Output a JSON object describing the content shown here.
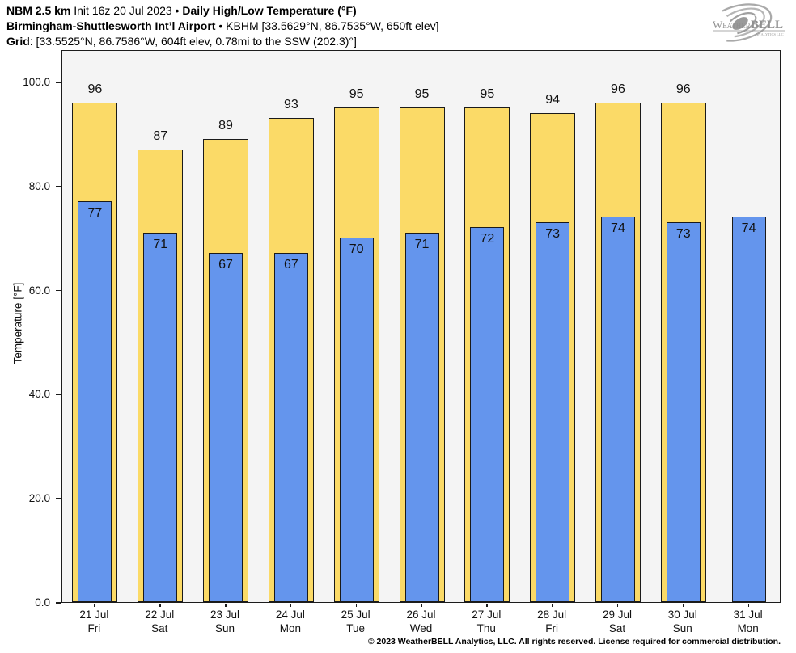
{
  "header": {
    "line1_bold1": "NBM 2.5 km",
    "line1_regular": " Init 16z 20 Jul 2023 • ",
    "line1_bold2": "Daily High/Low Temperature (°F)",
    "line2_bold": "Birmingham-Shuttlesworth Int’l Airport",
    "line2_regular": " • KBHM [33.5629°N, 86.7535°W, 650ft elev]",
    "line3_bold": "Grid",
    "line3_regular": ": [33.5525°N, 86.7586°W, 604ft elev, 0.78mi to the SSW (202.3)°]"
  },
  "logo": {
    "name": "WeatherBELL logo",
    "weather": "Weather",
    "bell": "BELL",
    "sub": "Analytics LLC",
    "color": "#9a9a9a"
  },
  "chart_data": {
    "type": "bar",
    "title": "NBM 2.5 km Init 16z 20 Jul 2023 • Daily High/Low Temperature (°F)",
    "subtitle": "Birmingham-Shuttlesworth Int’l Airport • KBHM [33.5629°N, 86.7535°W, 650ft elev]",
    "grid_info": "Grid: [33.5525°N, 86.7586°W, 604ft elev, 0.78mi to the SSW (202.3)°]",
    "xlabel": "",
    "ylabel": "Temperature [°F]",
    "ylim": [
      0,
      106.2
    ],
    "yticks": [
      0,
      20,
      40,
      60,
      80,
      100
    ],
    "grid_lines": false,
    "legend": "none",
    "plot_bg": "#f4f4f4",
    "bar_border": "#1a1a1a",
    "categories": [
      {
        "date": "21 Jul",
        "day": "Fri"
      },
      {
        "date": "22 Jul",
        "day": "Sat"
      },
      {
        "date": "23 Jul",
        "day": "Sun"
      },
      {
        "date": "24 Jul",
        "day": "Mon"
      },
      {
        "date": "25 Jul",
        "day": "Tue"
      },
      {
        "date": "26 Jul",
        "day": "Wed"
      },
      {
        "date": "27 Jul",
        "day": "Thu"
      },
      {
        "date": "28 Jul",
        "day": "Fri"
      },
      {
        "date": "29 Jul",
        "day": "Sat"
      },
      {
        "date": "30 Jul",
        "day": "Sun"
      },
      {
        "date": "31 Jul",
        "day": "Mon"
      }
    ],
    "series": [
      {
        "name": "High",
        "color": "#fbda67",
        "values": [
          96,
          87,
          89,
          93,
          95,
          95,
          95,
          94,
          96,
          96,
          null
        ]
      },
      {
        "name": "Low",
        "color": "#6495ed",
        "values": [
          77,
          71,
          67,
          67,
          70,
          71,
          72,
          73,
          74,
          73,
          74
        ]
      }
    ]
  },
  "footer": {
    "copyright": "© 2023 WeatherBELL Analytics, LLC. All rights reserved. License required for commercial distribution."
  }
}
